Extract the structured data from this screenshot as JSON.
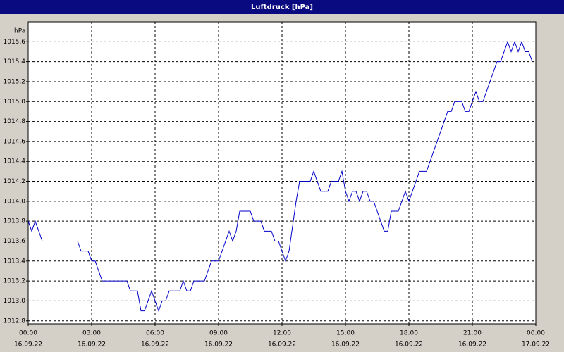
{
  "chart_data": {
    "type": "line",
    "title": "Luftdruck [hPa]",
    "y_label": "hPa",
    "x": [
      0,
      10,
      20,
      40,
      140,
      150,
      170,
      180,
      190,
      210,
      280,
      290,
      310,
      320,
      330,
      350,
      370,
      380,
      390,
      400,
      430,
      440,
      450,
      460,
      470,
      500,
      520,
      540,
      570,
      580,
      590,
      600,
      630,
      640,
      660,
      670,
      690,
      700,
      710,
      730,
      740,
      760,
      770,
      800,
      810,
      830,
      850,
      860,
      880,
      890,
      900,
      910,
      920,
      930,
      940,
      950,
      960,
      970,
      980,
      990,
      1010,
      1020,
      1030,
      1050,
      1070,
      1080,
      1110,
      1130,
      1190,
      1200,
      1210,
      1230,
      1240,
      1250,
      1270,
      1280,
      1290,
      1330,
      1340,
      1360,
      1370,
      1380,
      1390,
      1400,
      1410,
      1420,
      1430
    ],
    "values": [
      1013.8,
      1013.7,
      1013.8,
      1013.6,
      1013.6,
      1013.5,
      1013.5,
      1013.4,
      1013.4,
      1013.2,
      1013.2,
      1013.1,
      1013.1,
      1012.9,
      1012.9,
      1013.1,
      1012.9,
      1013.0,
      1013.0,
      1013.1,
      1013.1,
      1013.2,
      1013.1,
      1013.1,
      1013.2,
      1013.2,
      1013.4,
      1013.4,
      1013.7,
      1013.6,
      1013.7,
      1013.9,
      1013.9,
      1013.8,
      1013.8,
      1013.7,
      1013.7,
      1013.6,
      1013.6,
      1013.4,
      1013.5,
      1014.0,
      1014.2,
      1014.2,
      1014.3,
      1014.1,
      1014.1,
      1014.2,
      1014.2,
      1014.3,
      1014.1,
      1014.0,
      1014.1,
      1014.1,
      1014.0,
      1014.1,
      1014.1,
      1014.0,
      1014.0,
      1013.9,
      1013.7,
      1013.7,
      1013.9,
      1013.9,
      1014.1,
      1014.0,
      1014.3,
      1014.3,
      1014.9,
      1014.9,
      1015.0,
      1015.0,
      1014.9,
      1014.9,
      1015.1,
      1015.0,
      1015.0,
      1015.4,
      1015.4,
      1015.6,
      1015.5,
      1015.6,
      1015.5,
      1015.6,
      1015.5,
      1015.5,
      1015.4
    ],
    "color": "#0000c8",
    "xlim": [
      0,
      1440
    ],
    "xticks": [
      {
        "value": 0,
        "label": "00:00"
      },
      {
        "value": 180,
        "label": "03:00"
      },
      {
        "value": 360,
        "label": "06:00"
      },
      {
        "value": 540,
        "label": "09:00"
      },
      {
        "value": 720,
        "label": "12:00"
      },
      {
        "value": 900,
        "label": "15:00"
      },
      {
        "value": 1080,
        "label": "18:00"
      },
      {
        "value": 1260,
        "label": "21:00"
      },
      {
        "value": 1440,
        "label": "00:00"
      }
    ],
    "xtick_dates": [
      "16.09.22",
      "16.09.22",
      "16.09.22",
      "16.09.22",
      "16.09.22",
      "16.09.22",
      "16.09.22",
      "16.09.22",
      "17.09.22"
    ],
    "ylim": [
      1012.77,
      1015.8
    ],
    "yticks": [
      {
        "value": 1012.8,
        "label": "1012,8"
      },
      {
        "value": 1013.0,
        "label": "1013,0"
      },
      {
        "value": 1013.2,
        "label": "1013,2"
      },
      {
        "value": 1013.4,
        "label": "1013,4"
      },
      {
        "value": 1013.6,
        "label": "1013,6"
      },
      {
        "value": 1013.8,
        "label": "1013,8"
      },
      {
        "value": 1014.0,
        "label": "1014,0"
      },
      {
        "value": 1014.2,
        "label": "1014,2"
      },
      {
        "value": 1014.4,
        "label": "1014,4"
      },
      {
        "value": 1014.6,
        "label": "1014,6"
      },
      {
        "value": 1014.8,
        "label": "1014,8"
      },
      {
        "value": 1015.0,
        "label": "1015,0"
      },
      {
        "value": 1015.2,
        "label": "1015,2"
      },
      {
        "value": 1015.4,
        "label": "1015,4"
      },
      {
        "value": 1015.6,
        "label": "1015,6"
      }
    ],
    "grid": true
  }
}
